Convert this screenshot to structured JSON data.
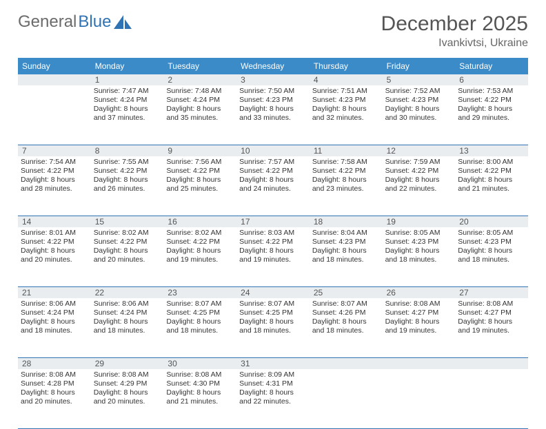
{
  "logo": {
    "text1": "General",
    "text2": "Blue"
  },
  "title": "December 2025",
  "location": "Ivankivtsi, Ukraine",
  "colors": {
    "header_bg": "#3b8bc8",
    "header_text": "#ffffff",
    "daynum_bg": "#e9edf0",
    "rule": "#2f73b5",
    "text": "#333333"
  },
  "weekdays": [
    "Sunday",
    "Monday",
    "Tuesday",
    "Wednesday",
    "Thursday",
    "Friday",
    "Saturday"
  ],
  "weeks": [
    [
      {
        "n": "",
        "sr": "",
        "ss": "",
        "dl": ""
      },
      {
        "n": "1",
        "sr": "Sunrise: 7:47 AM",
        "ss": "Sunset: 4:24 PM",
        "dl": "Daylight: 8 hours and 37 minutes."
      },
      {
        "n": "2",
        "sr": "Sunrise: 7:48 AM",
        "ss": "Sunset: 4:24 PM",
        "dl": "Daylight: 8 hours and 35 minutes."
      },
      {
        "n": "3",
        "sr": "Sunrise: 7:50 AM",
        "ss": "Sunset: 4:23 PM",
        "dl": "Daylight: 8 hours and 33 minutes."
      },
      {
        "n": "4",
        "sr": "Sunrise: 7:51 AM",
        "ss": "Sunset: 4:23 PM",
        "dl": "Daylight: 8 hours and 32 minutes."
      },
      {
        "n": "5",
        "sr": "Sunrise: 7:52 AM",
        "ss": "Sunset: 4:23 PM",
        "dl": "Daylight: 8 hours and 30 minutes."
      },
      {
        "n": "6",
        "sr": "Sunrise: 7:53 AM",
        "ss": "Sunset: 4:22 PM",
        "dl": "Daylight: 8 hours and 29 minutes."
      }
    ],
    [
      {
        "n": "7",
        "sr": "Sunrise: 7:54 AM",
        "ss": "Sunset: 4:22 PM",
        "dl": "Daylight: 8 hours and 28 minutes."
      },
      {
        "n": "8",
        "sr": "Sunrise: 7:55 AM",
        "ss": "Sunset: 4:22 PM",
        "dl": "Daylight: 8 hours and 26 minutes."
      },
      {
        "n": "9",
        "sr": "Sunrise: 7:56 AM",
        "ss": "Sunset: 4:22 PM",
        "dl": "Daylight: 8 hours and 25 minutes."
      },
      {
        "n": "10",
        "sr": "Sunrise: 7:57 AM",
        "ss": "Sunset: 4:22 PM",
        "dl": "Daylight: 8 hours and 24 minutes."
      },
      {
        "n": "11",
        "sr": "Sunrise: 7:58 AM",
        "ss": "Sunset: 4:22 PM",
        "dl": "Daylight: 8 hours and 23 minutes."
      },
      {
        "n": "12",
        "sr": "Sunrise: 7:59 AM",
        "ss": "Sunset: 4:22 PM",
        "dl": "Daylight: 8 hours and 22 minutes."
      },
      {
        "n": "13",
        "sr": "Sunrise: 8:00 AM",
        "ss": "Sunset: 4:22 PM",
        "dl": "Daylight: 8 hours and 21 minutes."
      }
    ],
    [
      {
        "n": "14",
        "sr": "Sunrise: 8:01 AM",
        "ss": "Sunset: 4:22 PM",
        "dl": "Daylight: 8 hours and 20 minutes."
      },
      {
        "n": "15",
        "sr": "Sunrise: 8:02 AM",
        "ss": "Sunset: 4:22 PM",
        "dl": "Daylight: 8 hours and 20 minutes."
      },
      {
        "n": "16",
        "sr": "Sunrise: 8:02 AM",
        "ss": "Sunset: 4:22 PM",
        "dl": "Daylight: 8 hours and 19 minutes."
      },
      {
        "n": "17",
        "sr": "Sunrise: 8:03 AM",
        "ss": "Sunset: 4:22 PM",
        "dl": "Daylight: 8 hours and 19 minutes."
      },
      {
        "n": "18",
        "sr": "Sunrise: 8:04 AM",
        "ss": "Sunset: 4:23 PM",
        "dl": "Daylight: 8 hours and 18 minutes."
      },
      {
        "n": "19",
        "sr": "Sunrise: 8:05 AM",
        "ss": "Sunset: 4:23 PM",
        "dl": "Daylight: 8 hours and 18 minutes."
      },
      {
        "n": "20",
        "sr": "Sunrise: 8:05 AM",
        "ss": "Sunset: 4:23 PM",
        "dl": "Daylight: 8 hours and 18 minutes."
      }
    ],
    [
      {
        "n": "21",
        "sr": "Sunrise: 8:06 AM",
        "ss": "Sunset: 4:24 PM",
        "dl": "Daylight: 8 hours and 18 minutes."
      },
      {
        "n": "22",
        "sr": "Sunrise: 8:06 AM",
        "ss": "Sunset: 4:24 PM",
        "dl": "Daylight: 8 hours and 18 minutes."
      },
      {
        "n": "23",
        "sr": "Sunrise: 8:07 AM",
        "ss": "Sunset: 4:25 PM",
        "dl": "Daylight: 8 hours and 18 minutes."
      },
      {
        "n": "24",
        "sr": "Sunrise: 8:07 AM",
        "ss": "Sunset: 4:25 PM",
        "dl": "Daylight: 8 hours and 18 minutes."
      },
      {
        "n": "25",
        "sr": "Sunrise: 8:07 AM",
        "ss": "Sunset: 4:26 PM",
        "dl": "Daylight: 8 hours and 18 minutes."
      },
      {
        "n": "26",
        "sr": "Sunrise: 8:08 AM",
        "ss": "Sunset: 4:27 PM",
        "dl": "Daylight: 8 hours and 19 minutes."
      },
      {
        "n": "27",
        "sr": "Sunrise: 8:08 AM",
        "ss": "Sunset: 4:27 PM",
        "dl": "Daylight: 8 hours and 19 minutes."
      }
    ],
    [
      {
        "n": "28",
        "sr": "Sunrise: 8:08 AM",
        "ss": "Sunset: 4:28 PM",
        "dl": "Daylight: 8 hours and 20 minutes."
      },
      {
        "n": "29",
        "sr": "Sunrise: 8:08 AM",
        "ss": "Sunset: 4:29 PM",
        "dl": "Daylight: 8 hours and 20 minutes."
      },
      {
        "n": "30",
        "sr": "Sunrise: 8:08 AM",
        "ss": "Sunset: 4:30 PM",
        "dl": "Daylight: 8 hours and 21 minutes."
      },
      {
        "n": "31",
        "sr": "Sunrise: 8:09 AM",
        "ss": "Sunset: 4:31 PM",
        "dl": "Daylight: 8 hours and 22 minutes."
      },
      {
        "n": "",
        "sr": "",
        "ss": "",
        "dl": ""
      },
      {
        "n": "",
        "sr": "",
        "ss": "",
        "dl": ""
      },
      {
        "n": "",
        "sr": "",
        "ss": "",
        "dl": ""
      }
    ]
  ]
}
